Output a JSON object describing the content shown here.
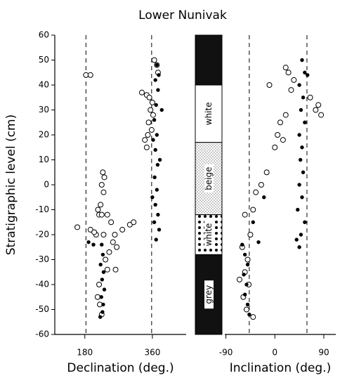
{
  "title": "Lower Nunivak",
  "y_label": "Stratigraphic level (cm)",
  "lithology": [
    {
      "fill": "black",
      "top": 60,
      "bottom": 40
    },
    {
      "label": "white",
      "fill": "white",
      "top": 40,
      "bottom": 17
    },
    {
      "label": "beige",
      "fill": "stipple",
      "top": 17,
      "bottom": -12
    },
    {
      "label": "white",
      "fill": "dots",
      "top": -12,
      "bottom": -28
    },
    {
      "label": "grey",
      "fill": "black",
      "top": -28,
      "bottom": -60
    }
  ],
  "chart_data": [
    {
      "type": "scatter",
      "x_label": "Declination (deg.)",
      "xlim": [
        100,
        450
      ],
      "xticks": [
        180,
        360
      ],
      "ylim": [
        -60,
        60
      ],
      "yticks": [
        -60,
        -50,
        -40,
        -30,
        -20,
        -10,
        0,
        10,
        20,
        30,
        40,
        50,
        60
      ],
      "reference_lines": [
        183,
        358
      ],
      "series": [
        {
          "marker": "open",
          "color": "#000000",
          "x": [
            345,
            352,
            360,
            355,
            362,
            350,
            358,
            340,
            345,
            372,
            365,
            375,
            332,
            348,
            183,
            195,
            228,
            232,
            225,
            230,
            222,
            215,
            218,
            225,
            240,
            250,
            195,
            210,
            230,
            260,
            280,
            300,
            310,
            255,
            265,
            245,
            235,
            240,
            262,
            218,
            214,
            220,
            225,
            160,
            205
          ],
          "values": [
            36,
            35,
            33,
            30,
            28,
            25,
            22,
            18,
            15,
            48,
            50,
            45,
            37,
            20,
            44,
            44,
            5,
            3,
            0,
            -3,
            -8,
            -10,
            -12,
            -12,
            -12,
            -15,
            -18,
            -20,
            -20,
            -20,
            -18,
            -16,
            -15,
            -23,
            -25,
            -27,
            -30,
            -34,
            -34,
            -40,
            -45,
            -48,
            -52,
            -17,
            -19
          ]
        },
        {
          "marker": "filled",
          "color": "#000000",
          "x": [
            372,
            368,
            375,
            370,
            365,
            372,
            368,
            374,
            366,
            372,
            368,
            375,
            365,
            378,
            370,
            380,
            362,
            385,
            360,
            377,
            225,
            228,
            222,
            230,
            226,
            232,
            224,
            229,
            227,
            221,
            203,
            190
          ],
          "values": [
            48,
            42,
            38,
            32,
            26,
            20,
            14,
            8,
            3,
            -2,
            -8,
            -12,
            -15,
            -18,
            -22,
            10,
            18,
            30,
            -5,
            44,
            -24,
            -28,
            -32,
            -35,
            -38,
            -42,
            -45,
            -48,
            -51,
            -53,
            -24,
            -23
          ]
        }
      ]
    },
    {
      "type": "scatter",
      "x_label": "Inclination (deg.)",
      "xlim": [
        -92,
        112
      ],
      "xticks": [
        -90,
        0,
        90
      ],
      "ylim": [
        -60,
        60
      ],
      "reference_lines": [
        -47,
        59
      ],
      "series": [
        {
          "marker": "open",
          "color": "#000000",
          "x": [
            20,
            25,
            35,
            30,
            65,
            75,
            80,
            85,
            20,
            10,
            5,
            15,
            -10,
            0,
            -15,
            -25,
            -35,
            -40,
            -55,
            -45,
            -60,
            -50,
            -55,
            -48,
            -58,
            -52,
            -40,
            -65
          ],
          "values": [
            47,
            45,
            42,
            38,
            35,
            30,
            32,
            28,
            28,
            25,
            20,
            18,
            40,
            15,
            5,
            0,
            -3,
            -10,
            -12,
            -20,
            -25,
            -30,
            -35,
            -40,
            -45,
            -50,
            -53,
            -38
          ]
        },
        {
          "marker": "filled",
          "color": "#000000",
          "x": [
            50,
            55,
            45,
            52,
            48,
            55,
            45,
            50,
            47,
            52,
            45,
            50,
            42,
            55,
            48,
            45,
            60,
            40,
            -60,
            -55,
            -50,
            -57,
            -52,
            -55,
            -50,
            -47,
            -30,
            -20,
            -40
          ],
          "values": [
            50,
            45,
            40,
            35,
            30,
            25,
            20,
            15,
            10,
            5,
            0,
            -5,
            -10,
            -15,
            -20,
            -25,
            44,
            -22,
            -24,
            -28,
            -32,
            -36,
            -40,
            -44,
            -48,
            -52,
            -23,
            -5,
            -15
          ]
        }
      ]
    }
  ]
}
